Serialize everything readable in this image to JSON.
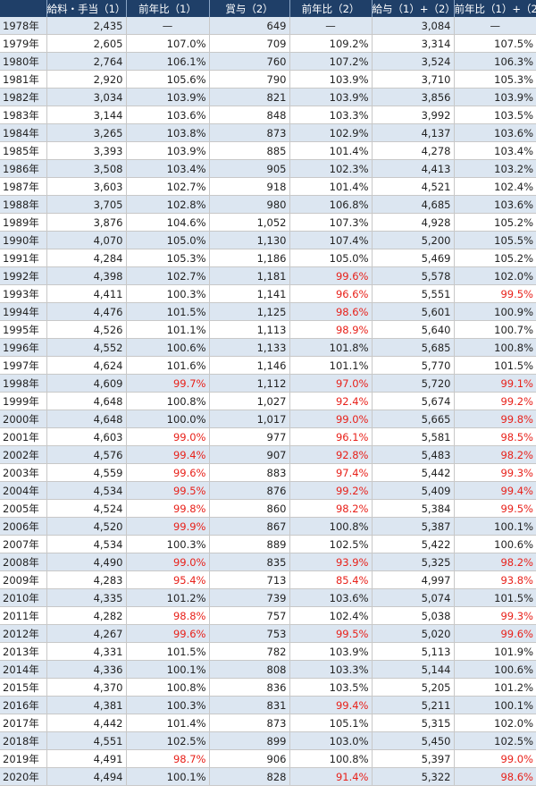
{
  "headers": [
    "",
    "給料・手当（1）",
    "前年比（1）",
    "賞与（2）",
    "前年比（2）",
    "給与（1）+（2）",
    "前年比（1）+（2）"
  ],
  "rows": [
    [
      "1978年",
      "2,435",
      "—",
      "649",
      "—",
      "3,084",
      "—"
    ],
    [
      "1979年",
      "2,605",
      "107.0%",
      "709",
      "109.2%",
      "3,314",
      "107.5%"
    ],
    [
      "1980年",
      "2,764",
      "106.1%",
      "760",
      "107.2%",
      "3,524",
      "106.3%"
    ],
    [
      "1981年",
      "2,920",
      "105.6%",
      "790",
      "103.9%",
      "3,710",
      "105.3%"
    ],
    [
      "1982年",
      "3,034",
      "103.9%",
      "821",
      "103.9%",
      "3,856",
      "103.9%"
    ],
    [
      "1983年",
      "3,144",
      "103.6%",
      "848",
      "103.3%",
      "3,992",
      "103.5%"
    ],
    [
      "1984年",
      "3,265",
      "103.8%",
      "873",
      "102.9%",
      "4,137",
      "103.6%"
    ],
    [
      "1985年",
      "3,393",
      "103.9%",
      "885",
      "101.4%",
      "4,278",
      "103.4%"
    ],
    [
      "1986年",
      "3,508",
      "103.4%",
      "905",
      "102.3%",
      "4,413",
      "103.2%"
    ],
    [
      "1987年",
      "3,603",
      "102.7%",
      "918",
      "101.4%",
      "4,521",
      "102.4%"
    ],
    [
      "1988年",
      "3,705",
      "102.8%",
      "980",
      "106.8%",
      "4,685",
      "103.6%"
    ],
    [
      "1989年",
      "3,876",
      "104.6%",
      "1,052",
      "107.3%",
      "4,928",
      "105.2%"
    ],
    [
      "1990年",
      "4,070",
      "105.0%",
      "1,130",
      "107.4%",
      "5,200",
      "105.5%"
    ],
    [
      "1991年",
      "4,284",
      "105.3%",
      "1,186",
      "105.0%",
      "5,469",
      "105.2%"
    ],
    [
      "1992年",
      "4,398",
      "102.7%",
      "1,181",
      "99.6%",
      "5,578",
      "102.0%"
    ],
    [
      "1993年",
      "4,411",
      "100.3%",
      "1,141",
      "96.6%",
      "5,551",
      "99.5%"
    ],
    [
      "1994年",
      "4,476",
      "101.5%",
      "1,125",
      "98.6%",
      "5,601",
      "100.9%"
    ],
    [
      "1995年",
      "4,526",
      "101.1%",
      "1,113",
      "98.9%",
      "5,640",
      "100.7%"
    ],
    [
      "1996年",
      "4,552",
      "100.6%",
      "1,133",
      "101.8%",
      "5,685",
      "100.8%"
    ],
    [
      "1997年",
      "4,624",
      "101.6%",
      "1,146",
      "101.1%",
      "5,770",
      "101.5%"
    ],
    [
      "1998年",
      "4,609",
      "99.7%",
      "1,112",
      "97.0%",
      "5,720",
      "99.1%"
    ],
    [
      "1999年",
      "4,648",
      "100.8%",
      "1,027",
      "92.4%",
      "5,674",
      "99.2%"
    ],
    [
      "2000年",
      "4,648",
      "100.0%",
      "1,017",
      "99.0%",
      "5,665",
      "99.8%"
    ],
    [
      "2001年",
      "4,603",
      "99.0%",
      "977",
      "96.1%",
      "5,581",
      "98.5%"
    ],
    [
      "2002年",
      "4,576",
      "99.4%",
      "907",
      "92.8%",
      "5,483",
      "98.2%"
    ],
    [
      "2003年",
      "4,559",
      "99.6%",
      "883",
      "97.4%",
      "5,442",
      "99.3%"
    ],
    [
      "2004年",
      "4,534",
      "99.5%",
      "876",
      "99.2%",
      "5,409",
      "99.4%"
    ],
    [
      "2005年",
      "4,524",
      "99.8%",
      "860",
      "98.2%",
      "5,384",
      "99.5%"
    ],
    [
      "2006年",
      "4,520",
      "99.9%",
      "867",
      "100.8%",
      "5,387",
      "100.1%"
    ],
    [
      "2007年",
      "4,534",
      "100.3%",
      "889",
      "102.5%",
      "5,422",
      "100.6%"
    ],
    [
      "2008年",
      "4,490",
      "99.0%",
      "835",
      "93.9%",
      "5,325",
      "98.2%"
    ],
    [
      "2009年",
      "4,283",
      "95.4%",
      "713",
      "85.4%",
      "4,997",
      "93.8%"
    ],
    [
      "2010年",
      "4,335",
      "101.2%",
      "739",
      "103.6%",
      "5,074",
      "101.5%"
    ],
    [
      "2011年",
      "4,282",
      "98.8%",
      "757",
      "102.4%",
      "5,038",
      "99.3%"
    ],
    [
      "2012年",
      "4,267",
      "99.6%",
      "753",
      "99.5%",
      "5,020",
      "99.6%"
    ],
    [
      "2013年",
      "4,331",
      "101.5%",
      "782",
      "103.9%",
      "5,113",
      "101.9%"
    ],
    [
      "2014年",
      "4,336",
      "100.1%",
      "808",
      "103.3%",
      "5,144",
      "100.6%"
    ],
    [
      "2015年",
      "4,370",
      "100.8%",
      "836",
      "103.5%",
      "5,205",
      "101.2%"
    ],
    [
      "2016年",
      "4,381",
      "100.3%",
      "831",
      "99.4%",
      "5,211",
      "100.1%"
    ],
    [
      "2017年",
      "4,442",
      "101.4%",
      "873",
      "105.1%",
      "5,315",
      "102.0%"
    ],
    [
      "2018年",
      "4,551",
      "102.5%",
      "899",
      "103.0%",
      "5,450",
      "102.5%"
    ],
    [
      "2019年",
      "4,491",
      "98.7%",
      "906",
      "100.8%",
      "5,397",
      "99.0%"
    ],
    [
      "2020年",
      "4,494",
      "100.1%",
      "828",
      "91.4%",
      "5,322",
      "98.6%"
    ]
  ],
  "colors": {
    "header_bg": "#1f3f68",
    "band": "#dce6f1",
    "negative": "#e8211a"
  }
}
